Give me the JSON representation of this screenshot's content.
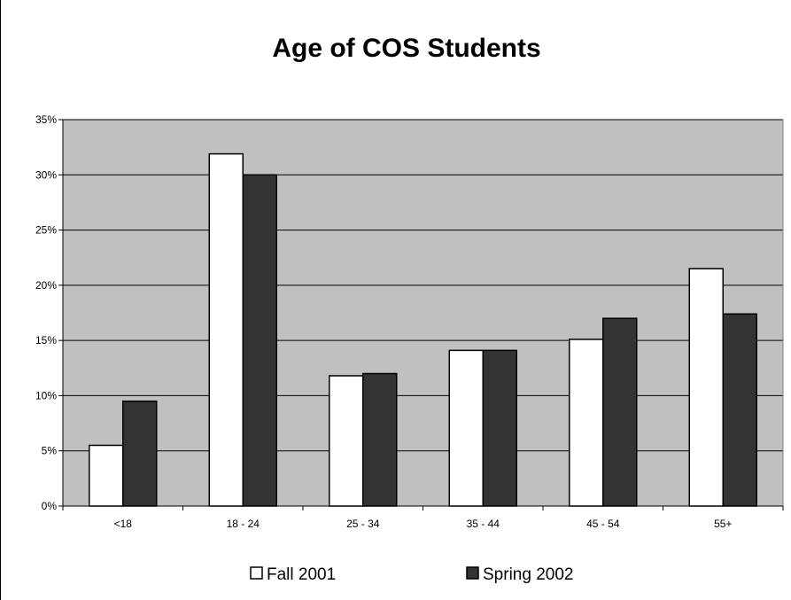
{
  "chart_data": {
    "type": "bar",
    "title": "Age of COS Students",
    "xlabel": "",
    "ylabel": "",
    "categories": [
      "<18",
      "18 - 24",
      "25 - 34",
      "35 - 44",
      "45 - 54",
      "55+"
    ],
    "series": [
      {
        "name": "Fall 2001",
        "values": [
          5.5,
          31.9,
          11.8,
          14.1,
          15.1,
          21.5
        ],
        "color": "#ffffff"
      },
      {
        "name": "Spring 2002",
        "values": [
          9.5,
          30.0,
          12.0,
          14.1,
          17.0,
          17.4
        ],
        "color": "#333333"
      }
    ],
    "ylim": [
      0,
      35
    ],
    "yticks": [
      0,
      5,
      10,
      15,
      20,
      25,
      30,
      35
    ],
    "ytick_labels": [
      "0%",
      "5%",
      "10%",
      "15%",
      "20%",
      "25%",
      "30%",
      "35%"
    ],
    "y_unit": "%",
    "grid": true,
    "plot_background": "#c0c0c0",
    "legend_position": "bottom"
  }
}
